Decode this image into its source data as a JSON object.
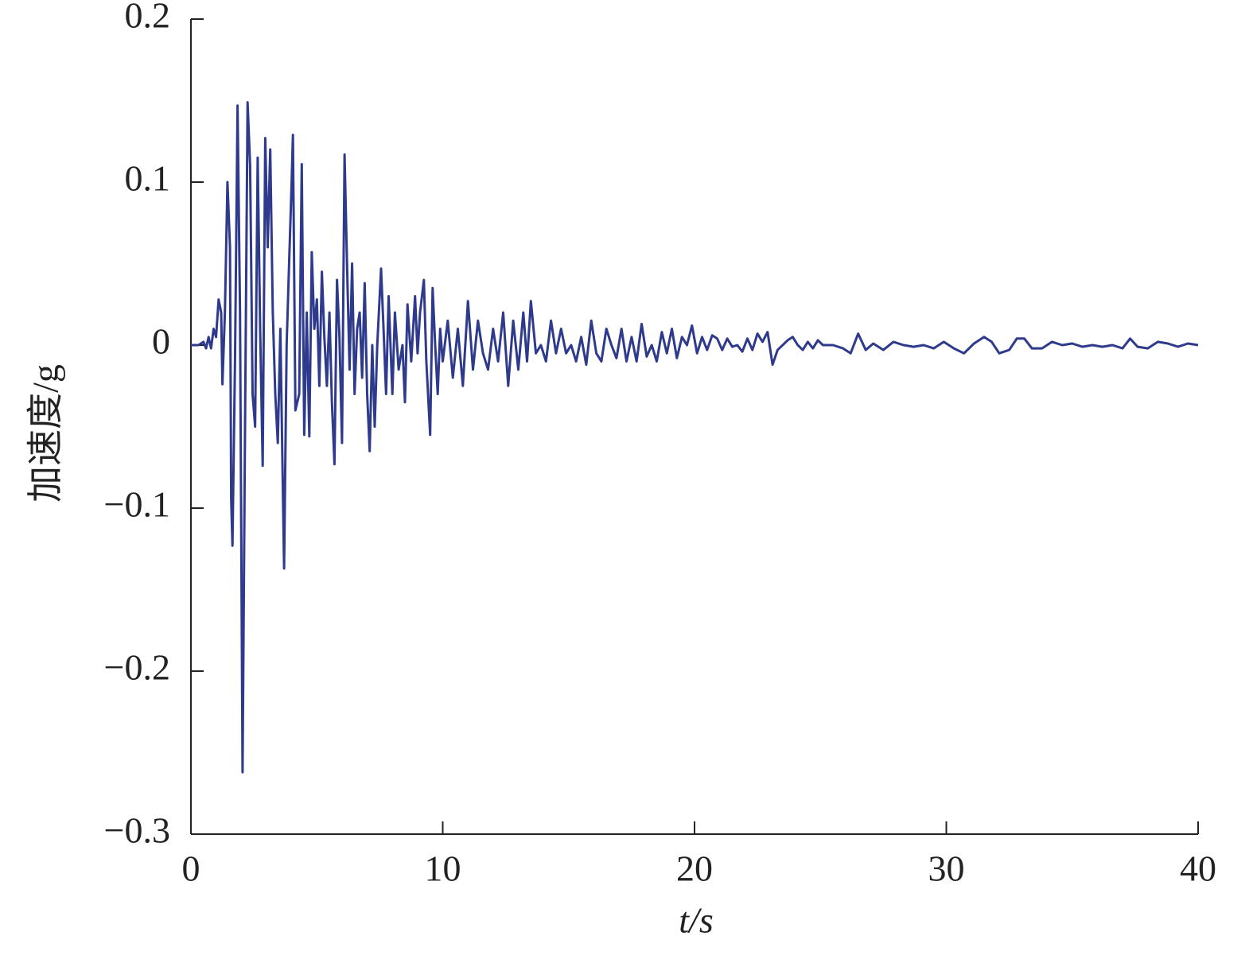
{
  "chart_data": {
    "type": "line",
    "x_label": "t/s",
    "y_label": "加速度/g",
    "xlim": [
      0,
      40
    ],
    "xticks": [
      0,
      10,
      20,
      30,
      40
    ],
    "ylim": [
      -0.3,
      0.2
    ],
    "yticks": [
      0.2,
      0.1,
      0,
      {
        "value": -0.1,
        "label": "−0.1"
      },
      {
        "value": -0.2,
        "label": "−0.2"
      },
      {
        "value": -0.3,
        "label": "−0.3"
      }
    ],
    "grid": false,
    "series": [
      {
        "color": "#2e3a8c",
        "x": [
          0,
          0.3,
          0.5,
          0.6,
          0.7,
          0.8,
          0.9,
          1.0,
          1.1,
          1.2,
          1.25,
          1.35,
          1.45,
          1.55,
          1.6,
          1.65,
          1.75,
          1.85,
          1.95,
          2.05,
          2.15,
          2.25,
          2.35,
          2.45,
          2.55,
          2.65,
          2.75,
          2.85,
          2.95,
          3.05,
          3.15,
          3.25,
          3.35,
          3.45,
          3.55,
          3.7,
          3.8,
          3.9,
          4.0,
          4.05,
          4.15,
          4.3,
          4.4,
          4.5,
          4.6,
          4.7,
          4.8,
          4.9,
          5.0,
          5.1,
          5.2,
          5.3,
          5.4,
          5.5,
          5.6,
          5.7,
          5.8,
          5.9,
          6.0,
          6.1,
          6.2,
          6.3,
          6.4,
          6.5,
          6.6,
          6.7,
          6.8,
          6.9,
          7.0,
          7.1,
          7.2,
          7.3,
          7.4,
          7.55,
          7.65,
          7.75,
          7.85,
          8.0,
          8.1,
          8.25,
          8.4,
          8.5,
          8.6,
          8.75,
          8.9,
          9.0,
          9.1,
          9.25,
          9.35,
          9.5,
          9.6,
          9.7,
          9.8,
          9.9,
          10.0,
          10.2,
          10.4,
          10.6,
          10.8,
          11.0,
          11.2,
          11.4,
          11.6,
          11.8,
          12.0,
          12.2,
          12.4,
          12.6,
          12.8,
          13.0,
          13.2,
          13.35,
          13.5,
          13.7,
          13.9,
          14.1,
          14.3,
          14.5,
          14.7,
          14.9,
          15.1,
          15.3,
          15.5,
          15.7,
          15.9,
          16.1,
          16.3,
          16.5,
          16.7,
          16.9,
          17.1,
          17.3,
          17.5,
          17.7,
          17.9,
          18.1,
          18.3,
          18.5,
          18.7,
          18.9,
          19.1,
          19.3,
          19.5,
          19.7,
          19.9,
          20.1,
          20.3,
          20.5,
          20.7,
          20.9,
          21.1,
          21.3,
          21.5,
          21.7,
          21.9,
          22.1,
          22.3,
          22.5,
          22.7,
          22.9,
          23.1,
          23.3,
          23.5,
          23.7,
          23.9,
          24.1,
          24.3,
          24.5,
          24.7,
          24.9,
          25.1,
          25.5,
          25.9,
          26.2,
          26.5,
          26.8,
          27.1,
          27.5,
          27.9,
          28.3,
          28.7,
          29.1,
          29.5,
          29.9,
          30.3,
          30.7,
          31.1,
          31.5,
          31.8,
          32.1,
          32.5,
          32.8,
          33.1,
          33.4,
          33.8,
          34.2,
          34.6,
          35.0,
          35.4,
          35.8,
          36.2,
          36.6,
          37.0,
          37.3,
          37.6,
          38.0,
          38.4,
          38.8,
          39.2,
          39.6,
          40.0
        ],
        "values": [
          0,
          0,
          0.002,
          -0.002,
          0.005,
          -0.002,
          0.01,
          0.005,
          0.028,
          0.02,
          -0.024,
          0.02,
          0.1,
          0.06,
          -0.095,
          -0.123,
          -0.01,
          0.147,
          0.02,
          -0.262,
          -0.05,
          0.149,
          0.11,
          -0.03,
          -0.05,
          0.115,
          0.01,
          -0.074,
          0.127,
          0.06,
          0.12,
          0.02,
          -0.03,
          -0.06,
          0.01,
          -0.137,
          0.0,
          0.05,
          0.1,
          0.129,
          -0.04,
          -0.03,
          0.111,
          -0.055,
          0.02,
          -0.056,
          0.057,
          0.01,
          0.028,
          -0.025,
          0.045,
          0.005,
          -0.025,
          0.02,
          -0.035,
          -0.073,
          0.04,
          0.005,
          -0.06,
          0.117,
          0.05,
          -0.015,
          0.05,
          -0.03,
          0.01,
          0.02,
          -0.02,
          0.038,
          -0.03,
          -0.065,
          0.0,
          -0.05,
          0.0,
          0.047,
          0.01,
          -0.03,
          0.03,
          -0.03,
          0.02,
          -0.015,
          0.0,
          -0.035,
          0.025,
          -0.01,
          0.03,
          -0.005,
          0.02,
          0.04,
          -0.01,
          -0.055,
          0.035,
          0.0,
          -0.03,
          0.01,
          -0.01,
          0.015,
          -0.02,
          0.01,
          -0.025,
          0.027,
          -0.015,
          0.015,
          -0.005,
          -0.015,
          0.01,
          -0.01,
          0.02,
          -0.025,
          0.015,
          -0.015,
          0.02,
          -0.01,
          0.027,
          -0.005,
          0.0,
          -0.01,
          0.015,
          -0.005,
          0.01,
          -0.005,
          0.0,
          -0.01,
          0.005,
          -0.012,
          0.015,
          -0.005,
          -0.01,
          0.01,
          0.0,
          -0.008,
          0.01,
          -0.01,
          0.005,
          -0.01,
          0.013,
          -0.007,
          0.0,
          -0.01,
          0.008,
          -0.005,
          0.01,
          -0.008,
          0.005,
          0.0,
          0.012,
          -0.005,
          0.005,
          -0.003,
          0.006,
          0.004,
          -0.003,
          0.004,
          -0.001,
          0.0,
          -0.004,
          0.004,
          -0.003,
          0.007,
          0.002,
          0.008,
          -0.012,
          -0.003,
          0.0,
          0.003,
          0.005,
          0.0,
          -0.003,
          0.002,
          -0.002,
          0.003,
          0.0,
          0.0,
          -0.002,
          -0.005,
          0.007,
          -0.003,
          0.001,
          -0.003,
          0.002,
          0.0,
          -0.001,
          0.0,
          -0.002,
          0.002,
          -0.002,
          -0.005,
          0.001,
          0.005,
          0.002,
          -0.005,
          -0.003,
          0.004,
          0.004,
          -0.002,
          -0.002,
          0.002,
          0.0,
          0.001,
          -0.001,
          0.0,
          -0.001,
          0.0,
          -0.002,
          0.004,
          -0.001,
          -0.002,
          0.002,
          0.001,
          -0.001,
          0.001,
          0.0
        ]
      }
    ]
  }
}
